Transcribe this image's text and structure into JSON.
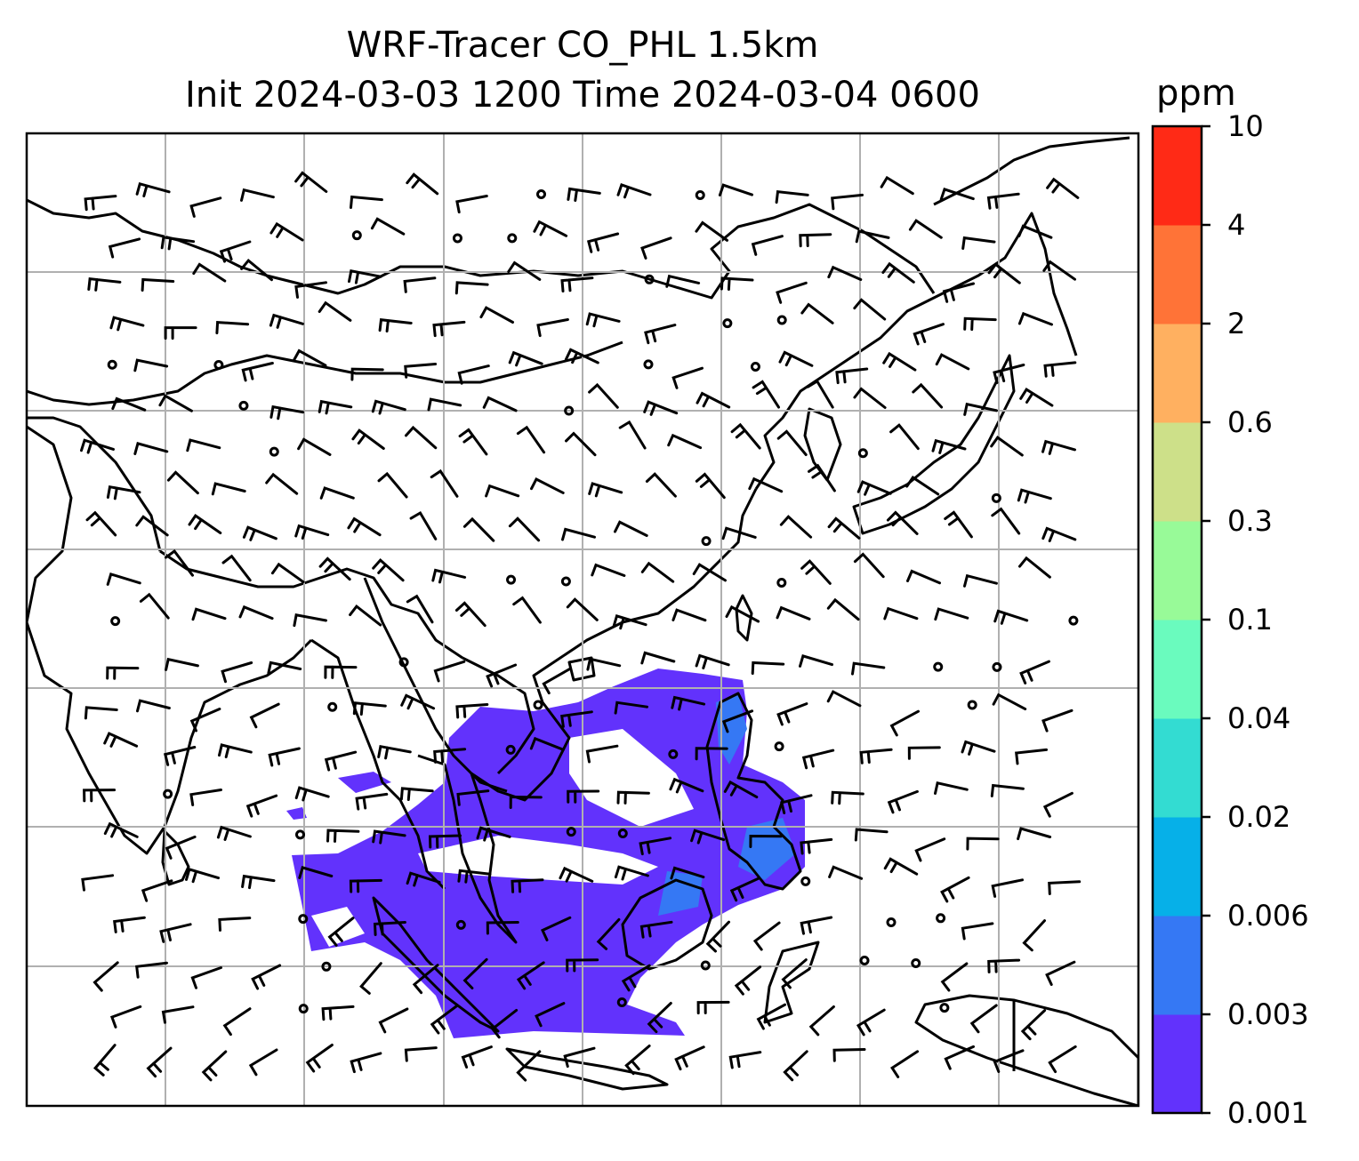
{
  "title": {
    "line1": "WRF-Tracer CO_PHL 1.5km",
    "line2": "Init 2024-03-03 1200 Time 2024-03-04 0600"
  },
  "colorbar": {
    "unit": "ppm",
    "levels": [
      "0.001",
      "0.003",
      "0.006",
      "0.02",
      "0.04",
      "0.1",
      "0.3",
      "0.6",
      "2",
      "4",
      "10"
    ],
    "colors": [
      "#6232fc",
      "#3578f4",
      "#06b0e8",
      "#33dcd2",
      "#6afbbe",
      "#98fa98",
      "#cde089",
      "#ffb060",
      "#ff7337",
      "#ff2a16"
    ]
  },
  "map": {
    "gridline_color": "#b0b0b0",
    "coastline_color": "#000000",
    "tracer_fill_color": "#6232fc",
    "features": [
      "coastlines",
      "country-borders",
      "wind-barbs",
      "calm-wind-circles",
      "lat-lon-grid",
      "CO-tracer-concentration"
    ]
  }
}
